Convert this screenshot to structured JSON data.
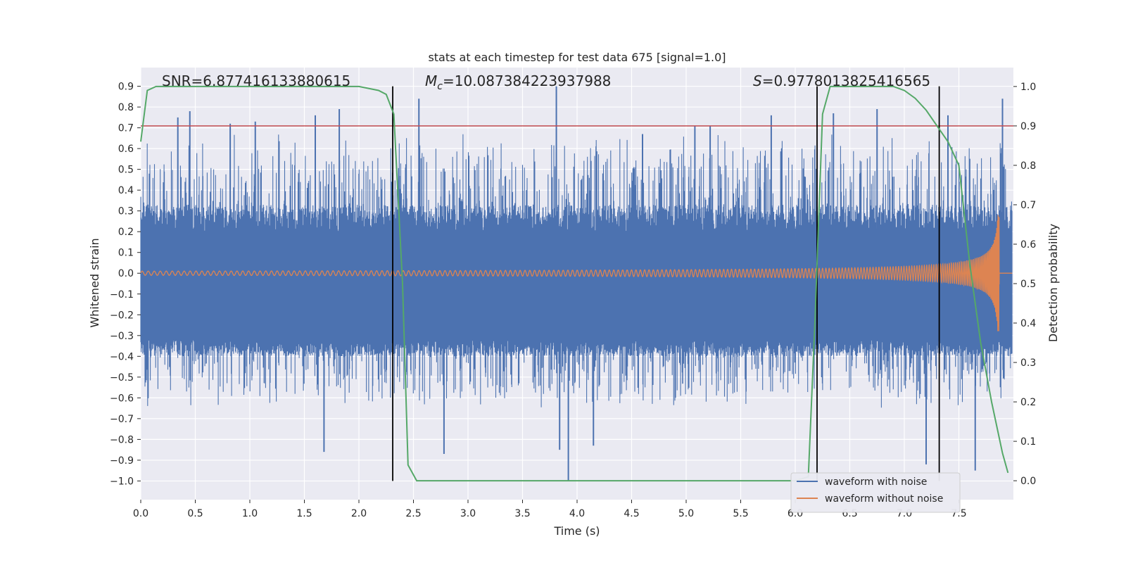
{
  "chart_data": {
    "type": "line",
    "title": "stats at each timestep for test data 675 [signal=1.0]",
    "xlabel": "Time (s)",
    "ylabel": "Whitened strain",
    "y2label": "Detection probability",
    "xlim": [
      0.0,
      8.0
    ],
    "ylim": [
      -1.09,
      0.99
    ],
    "y2lim": [
      -0.048,
      1.048
    ],
    "xticks": [
      0.0,
      0.5,
      1.0,
      1.5,
      2.0,
      2.5,
      3.0,
      3.5,
      4.0,
      4.5,
      5.0,
      5.5,
      6.0,
      6.5,
      7.0,
      7.5
    ],
    "xtick_labels": [
      "0.0",
      "0.5",
      "1.0",
      "1.5",
      "2.0",
      "2.5",
      "3.0",
      "3.5",
      "4.0",
      "4.5",
      "5.0",
      "5.5",
      "6.0",
      "6.5",
      "7.0",
      "7.5"
    ],
    "yticks": [
      0.9,
      0.8,
      0.7,
      0.6,
      0.5,
      0.4,
      0.3,
      0.2,
      0.1,
      0.0,
      -0.1,
      -0.2,
      -0.3,
      -0.4,
      -0.5,
      -0.6,
      -0.7,
      -0.8,
      -0.9,
      -1.0
    ],
    "ytick_labels": [
      "0.9",
      "0.8",
      "0.7",
      "0.6",
      "0.5",
      "0.4",
      "0.3",
      "0.2",
      "0.1",
      "0.0",
      "−0.1",
      "−0.2",
      "−0.3",
      "−0.4",
      "−0.5",
      "−0.6",
      "−0.7",
      "−0.8",
      "−0.9",
      "−1.0"
    ],
    "y2ticks": [
      1.0,
      0.9,
      0.8,
      0.7,
      0.6,
      0.5,
      0.4,
      0.3,
      0.2,
      0.1,
      0.0
    ],
    "y2tick_labels": [
      "1.0",
      "0.9",
      "0.8",
      "0.7",
      "0.6",
      "0.5",
      "0.4",
      "0.3",
      "0.2",
      "0.1",
      "0.0"
    ],
    "annotations": {
      "snr": "SNR=6.877416133880615",
      "mc_symbol": "M",
      "mc_sub": "c",
      "mc_value": "=10.087384223937988",
      "s_symbol": "S",
      "s_value": "=0.9778013825416565"
    },
    "threshold": {
      "axis": "y2",
      "value": 0.9,
      "color": "#c44e52"
    },
    "vertical_lines": [
      2.31,
      6.2,
      7.32
    ],
    "vertical_line_range": [
      -1.0,
      0.9
    ],
    "series": [
      {
        "name": "waveform with noise",
        "color": "#4c72b0",
        "noise_band_upper": [
          0.2,
          0.33
        ],
        "noise_band_lower": [
          -0.32,
          -0.4
        ],
        "spikes_upper": [
          [
            0.34,
            0.75
          ],
          [
            0.45,
            0.78
          ],
          [
            0.82,
            0.72
          ],
          [
            1.05,
            0.73
          ],
          [
            1.6,
            0.76
          ],
          [
            1.82,
            0.79
          ],
          [
            2.55,
            0.84
          ],
          [
            3.81,
            0.9
          ],
          [
            4.6,
            0.67
          ],
          [
            5.08,
            0.71
          ],
          [
            5.22,
            0.71
          ],
          [
            5.78,
            0.76
          ],
          [
            6.35,
            0.77
          ],
          [
            6.75,
            0.79
          ],
          [
            7.4,
            0.76
          ],
          [
            7.9,
            0.84
          ]
        ],
        "spikes_lower": [
          [
            1.68,
            -0.86
          ],
          [
            2.78,
            -0.87
          ],
          [
            3.84,
            -0.85
          ],
          [
            3.92,
            -1.0
          ],
          [
            4.15,
            -0.83
          ],
          [
            7.2,
            -0.92
          ],
          [
            7.65,
            -0.95
          ]
        ]
      },
      {
        "name": "waveform without noise",
        "color": "#dd8452",
        "chirp_start_amplitude": 0.01,
        "chirp_peak": [
          7.85,
          0.29
        ],
        "chirp_end_time": 7.87
      },
      {
        "name": "detection probability",
        "axis": "y2",
        "color": "#55a868",
        "x": [
          0.0,
          0.06,
          0.14,
          0.5,
          1.0,
          1.5,
          2.0,
          2.18,
          2.25,
          2.32,
          2.4,
          2.45,
          2.53,
          3.0,
          4.0,
          5.0,
          6.0,
          6.12,
          6.18,
          6.25,
          6.32,
          6.38,
          6.6,
          6.9,
          7.0,
          7.1,
          7.2,
          7.3,
          7.4,
          7.5,
          7.6,
          7.7,
          7.8,
          7.9,
          7.95
        ],
        "y": [
          0.86,
          0.99,
          1.0,
          1.0,
          1.0,
          1.0,
          1.0,
          0.99,
          0.98,
          0.93,
          0.5,
          0.04,
          0.0,
          0.0,
          0.0,
          0.0,
          0.0,
          0.01,
          0.4,
          0.93,
          1.0,
          1.0,
          1.0,
          1.0,
          0.99,
          0.97,
          0.94,
          0.9,
          0.86,
          0.8,
          0.55,
          0.35,
          0.2,
          0.07,
          0.02
        ]
      }
    ],
    "legend": [
      "waveform with noise",
      "waveform without noise"
    ],
    "legend_location": "lower right",
    "grid": true
  }
}
